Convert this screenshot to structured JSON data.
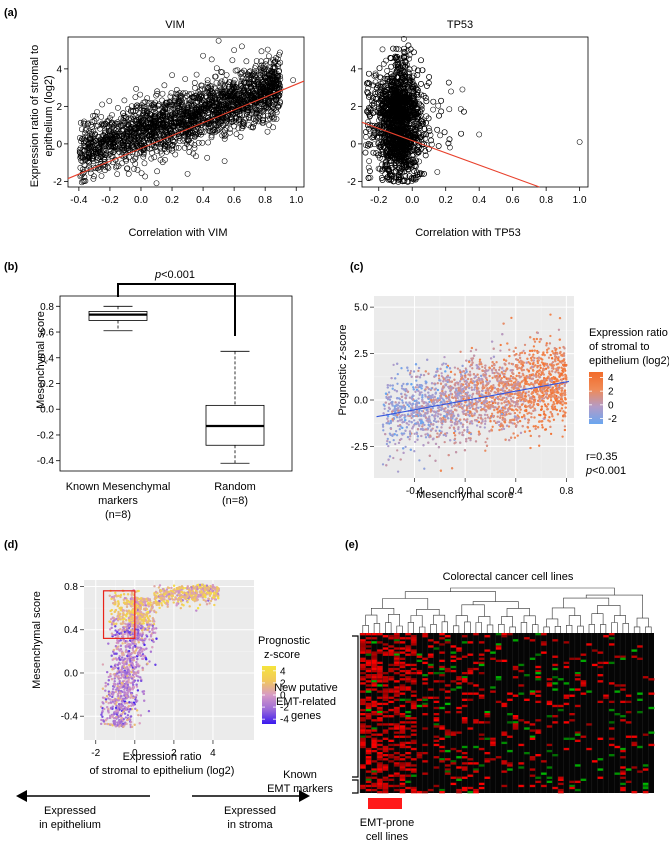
{
  "panel_labels": [
    "(a)",
    "(b)",
    "(c)",
    "(d)",
    "(e)"
  ],
  "colors": {
    "regression_red": "#e8412c",
    "regression_blue": "#3355dd",
    "ggplot_bg": "#ebebeb",
    "heatmap_bg": "#050505",
    "heatmap_red": "#ff2222",
    "heatmap_green": "#22aa22",
    "emt_bar": "#ff1a1a"
  },
  "chart_data": [
    {
      "id": "a-vim",
      "type": "scatter",
      "title": "VIM",
      "xlabel": "Correlation with VIM",
      "ylabel_lines": [
        "Expression ratio of stromal to",
        "epithelium  (log2)"
      ],
      "xlim": [
        -0.47,
        1.05
      ],
      "ylim": [
        -2.3,
        5.7
      ],
      "xticks": [
        -0.4,
        -0.2,
        0.0,
        0.2,
        0.4,
        0.6,
        0.8,
        1.0
      ],
      "xtick_labels": [
        "-0.4",
        "-0.2",
        "0.0",
        "0.2",
        "0.4",
        "0.6",
        "0.8",
        "1.0"
      ],
      "yticks": [
        -2,
        0,
        2,
        4
      ],
      "ytick_labels": [
        "-2",
        "0",
        "2",
        "4"
      ],
      "marker": "open-circle",
      "regression_line": {
        "x": [
          -0.47,
          1.05
        ],
        "y": [
          -1.85,
          3.35
        ]
      },
      "outliers": [
        [
          0.98,
          3.4
        ],
        [
          0.5,
          5.5
        ],
        [
          0.6,
          5.0
        ],
        [
          0.4,
          4.7
        ],
        [
          -0.25,
          2.1
        ],
        [
          0.1,
          -2.1
        ],
        [
          0.3,
          -1.6
        ],
        [
          0.65,
          5.2
        ]
      ]
    },
    {
      "id": "a-tp53",
      "type": "scatter",
      "title": "TP53",
      "xlabel": "Correlation with TP53",
      "xlim": [
        -0.3,
        1.05
      ],
      "ylim": [
        -2.3,
        5.7
      ],
      "xticks": [
        -0.2,
        0.0,
        0.2,
        0.4,
        0.6,
        0.8,
        1.0
      ],
      "xtick_labels": [
        "-0.2",
        "0.0",
        "0.2",
        "0.4",
        "0.6",
        "0.8",
        "1.0"
      ],
      "yticks": [
        -2,
        0,
        2,
        4
      ],
      "ytick_labels": [
        "-2",
        "0",
        "2",
        "4"
      ],
      "marker": "open-circle",
      "regression_line": {
        "x": [
          -0.3,
          0.76
        ],
        "y": [
          1.15,
          -2.3
        ]
      },
      "outliers": [
        [
          1.0,
          0.1
        ],
        [
          0.3,
          2.9
        ],
        [
          0.4,
          0.5
        ],
        [
          -0.25,
          -1.8
        ],
        [
          0.15,
          -1.5
        ],
        [
          -0.05,
          5.6
        ]
      ]
    },
    {
      "id": "b",
      "type": "box",
      "ylabel": "Mesenchymal score",
      "ylim": [
        -0.48,
        0.88
      ],
      "yticks": [
        -0.4,
        -0.2,
        0.0,
        0.2,
        0.4,
        0.6,
        0.8
      ],
      "ytick_labels": [
        "-0.4",
        "-0.2",
        "0.0",
        "0.2",
        "0.4",
        "0.6",
        "0.8"
      ],
      "groups": [
        {
          "label_lines": [
            "Known Mesenchymal",
            "markers",
            "(n=8)"
          ],
          "min": 0.61,
          "q1": 0.69,
          "median": 0.735,
          "q3": 0.76,
          "max": 0.8
        },
        {
          "label_lines": [
            "Random",
            "(n=8)"
          ],
          "min": -0.42,
          "q1": -0.28,
          "median": -0.13,
          "q3": 0.03,
          "max": 0.45
        }
      ],
      "annotation": {
        "p_italic": "p",
        "p_rest": "<0.001"
      }
    },
    {
      "id": "c",
      "type": "scatter",
      "xlabel": "Mesenchymal score",
      "ylabel": "Prognostic z-score",
      "xlim": [
        -0.72,
        0.86
      ],
      "ylim": [
        -4.2,
        5.6
      ],
      "xticks": [
        -0.4,
        0.0,
        0.4,
        0.8
      ],
      "xtick_labels": [
        "-0.4",
        "0.0",
        "0.4",
        "0.8"
      ],
      "yticks": [
        -2.5,
        0.0,
        2.5,
        5.0
      ],
      "ytick_labels": [
        "-2.5",
        "0.0",
        "2.5",
        "5.0"
      ],
      "regression_line": {
        "x": [
          -0.7,
          0.82
        ],
        "y": [
          -0.9,
          1.0
        ]
      },
      "legend": {
        "title_lines": [
          "Expression ratio",
          "of stromal to",
          "epithelium (log2)"
        ],
        "ticks": [
          4,
          2,
          0,
          -2
        ],
        "tick_labels": [
          "4",
          "2",
          "0",
          "-2"
        ],
        "range": [
          -2.8,
          4.8
        ],
        "colors": [
          "#6aa6f0",
          "#b39bc7",
          "#f08a56",
          "#f26b2a"
        ]
      },
      "stats": {
        "r": "r=0.35",
        "p_italic": "p",
        "p_rest": "<0.001"
      }
    },
    {
      "id": "d",
      "type": "scatter",
      "xlabel_lines": [
        "Expression ratio",
        "of stromal to epithelium (log2)"
      ],
      "ylabel": "Mesenchymal score",
      "xlim": [
        -2.6,
        6.1
      ],
      "ylim": [
        -0.62,
        0.86
      ],
      "xticks": [
        -2,
        0,
        2,
        4
      ],
      "xtick_labels": [
        "-2",
        "0",
        "2",
        "4"
      ],
      "yticks": [
        -0.4,
        0.0,
        0.4,
        0.8
      ],
      "ytick_labels": [
        "-0.4",
        "0.0",
        "0.4",
        "0.8"
      ],
      "highlight_box": {
        "x": [
          -1.6,
          0.0
        ],
        "y": [
          0.32,
          0.76
        ]
      },
      "legend": {
        "title_lines": [
          "Prognostic",
          "z-score"
        ],
        "ticks": [
          4,
          2,
          0,
          -2,
          -4
        ],
        "tick_labels": [
          "4",
          "2",
          "0",
          "-2",
          "-4"
        ],
        "range": [
          -4.8,
          4.8
        ],
        "colors": [
          "#3a1aef",
          "#9b6ad8",
          "#d79ac6",
          "#f2c85a",
          "#f5e43c"
        ]
      },
      "arrows": [
        {
          "direction": "left",
          "label_lines": [
            "Expressed",
            "in epithelium"
          ]
        },
        {
          "direction": "right",
          "label_lines": [
            "Expressed",
            "in stroma"
          ]
        }
      ]
    },
    {
      "id": "e",
      "type": "heatmap",
      "title": "Colorectal cancer cell lines",
      "row_group_labels": [
        {
          "lines": [
            "New putative",
            "EMT-related",
            "genes"
          ]
        },
        {
          "lines": [
            "Known",
            "EMT markers"
          ]
        }
      ],
      "bar_label_lines": [
        "EMT-prone",
        "cell lines"
      ],
      "n_columns": 52,
      "n_rows": 78
    }
  ]
}
